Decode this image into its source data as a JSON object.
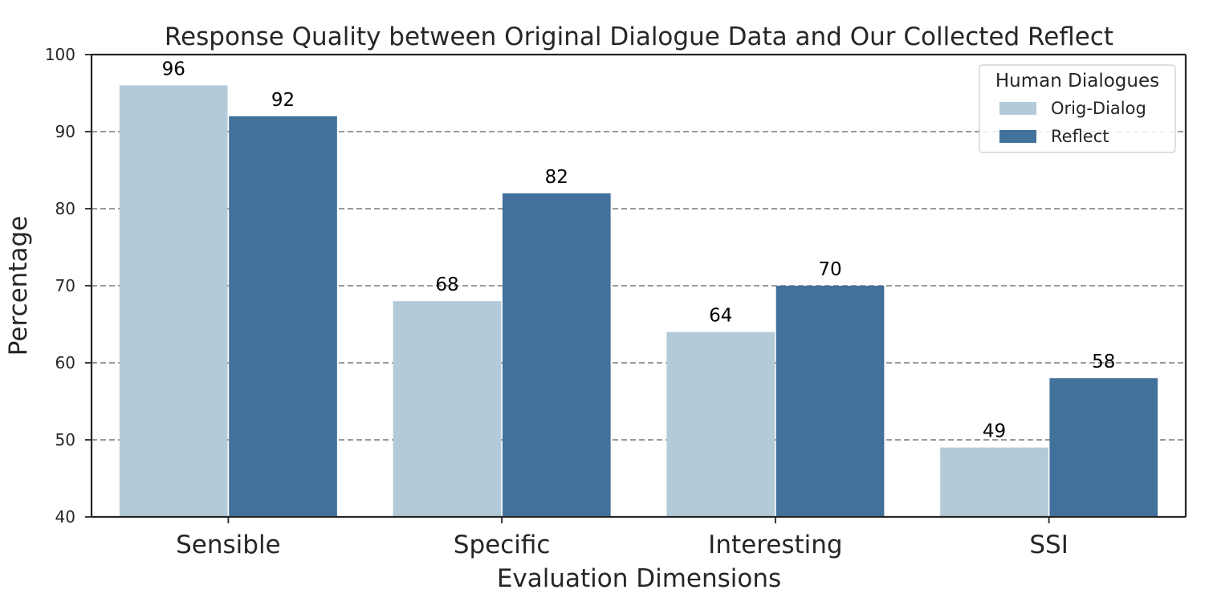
{
  "chart_data": {
    "type": "bar",
    "title": "Response Quality between Original Dialogue Data and Our Collected Reflect",
    "xlabel": "Evaluation Dimensions",
    "ylabel": "Percentage",
    "categories": [
      "Sensible",
      "Specific",
      "Interesting",
      "SSI"
    ],
    "series": [
      {
        "name": "Orig-Dialog",
        "values": [
          96,
          68,
          64,
          49
        ],
        "color": "#b3cbd9"
      },
      {
        "name": "Reflect",
        "values": [
          92,
          82,
          70,
          58
        ],
        "color": "#42729b"
      }
    ],
    "ylim": [
      40,
      100
    ],
    "yticks": [
      "40",
      "50",
      "60",
      "70",
      "80",
      "90",
      "100"
    ],
    "grid": "horizontal dashed",
    "legend": {
      "title": "Human Dialogues",
      "placement": "top-right"
    }
  }
}
